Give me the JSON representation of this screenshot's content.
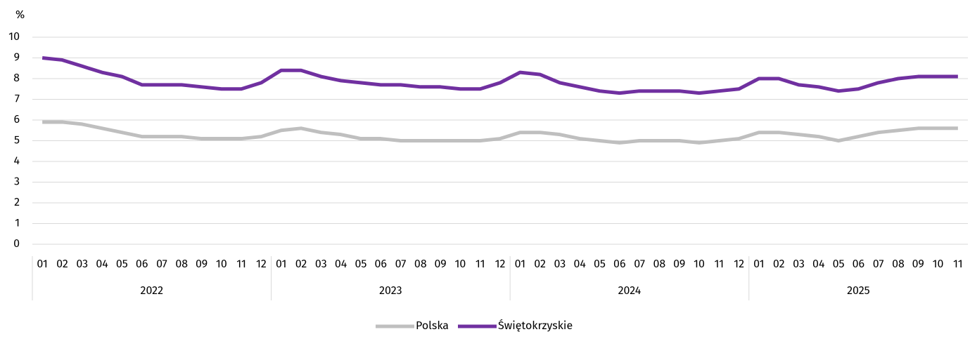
{
  "chart_data": {
    "type": "line",
    "y_label": "%",
    "groups": [
      {
        "name": "2022",
        "categories": [
          "01",
          "02",
          "03",
          "04",
          "05",
          "06",
          "07",
          "08",
          "09",
          "10",
          "11",
          "12"
        ]
      },
      {
        "name": "2023",
        "categories": [
          "01",
          "02",
          "03",
          "04",
          "05",
          "06",
          "07",
          "08",
          "09",
          "10",
          "11",
          "12"
        ]
      },
      {
        "name": "2024",
        "categories": [
          "01",
          "02",
          "03",
          "04",
          "05",
          "06",
          "07",
          "08",
          "09",
          "10",
          "11",
          "12"
        ]
      },
      {
        "name": "2025",
        "categories": [
          "01",
          "02",
          "03",
          "04",
          "05",
          "06",
          "07",
          "08",
          "09",
          "10",
          "11"
        ]
      }
    ],
    "series": [
      {
        "name": "Polska",
        "color": "#bfbfbf",
        "values": [
          5.9,
          5.9,
          5.8,
          5.6,
          5.4,
          5.2,
          5.2,
          5.2,
          5.1,
          5.1,
          5.1,
          5.2,
          5.5,
          5.6,
          5.4,
          5.3,
          5.1,
          5.1,
          5.0,
          5.0,
          5.0,
          5.0,
          5.0,
          5.1,
          5.4,
          5.4,
          5.3,
          5.1,
          5.0,
          4.9,
          5.0,
          5.0,
          5.0,
          4.9,
          5.0,
          5.1,
          5.4,
          5.4,
          5.3,
          5.2,
          5.0,
          5.2,
          5.4,
          5.5,
          5.6,
          5.6,
          5.6
        ]
      },
      {
        "name": "Świętokrzyskie",
        "color": "#7030a0",
        "values": [
          9.0,
          8.9,
          8.6,
          8.3,
          8.1,
          7.7,
          7.7,
          7.7,
          7.6,
          7.5,
          7.5,
          7.8,
          8.4,
          8.4,
          8.1,
          7.9,
          7.8,
          7.7,
          7.7,
          7.6,
          7.6,
          7.5,
          7.5,
          7.8,
          8.3,
          8.2,
          7.8,
          7.6,
          7.4,
          7.3,
          7.4,
          7.4,
          7.4,
          7.3,
          7.4,
          7.5,
          8.0,
          8.0,
          7.7,
          7.6,
          7.4,
          7.5,
          7.8,
          8.0,
          8.1,
          8.1,
          8.1
        ]
      }
    ],
    "ylim": [
      0,
      10
    ],
    "yticks": [
      0,
      1,
      2,
      3,
      4,
      5,
      6,
      7,
      8,
      9,
      10
    ],
    "grid": true,
    "legend": "bottom"
  }
}
